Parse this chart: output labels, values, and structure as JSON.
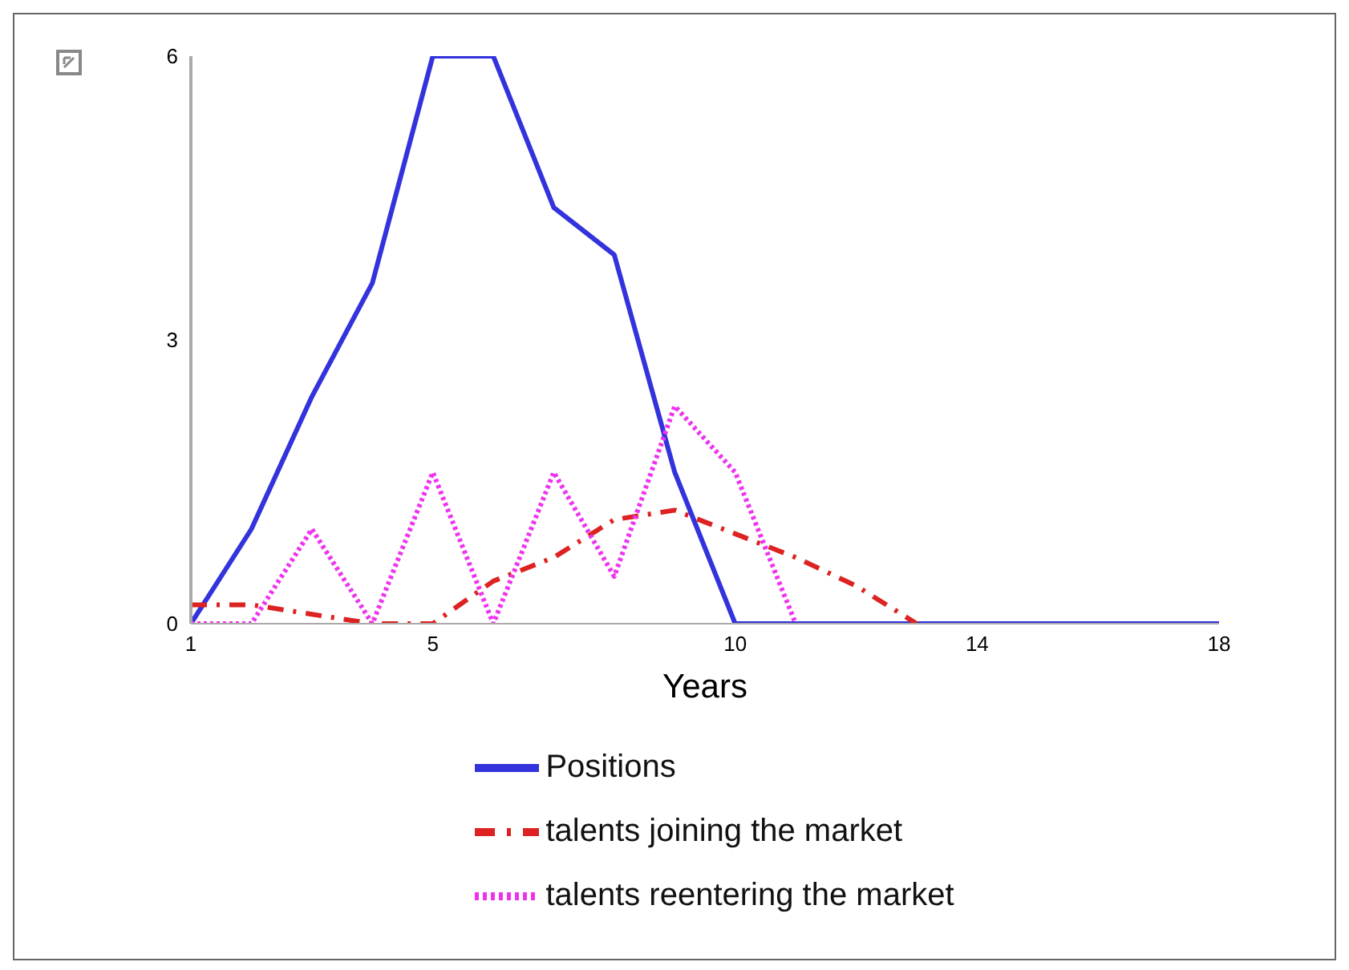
{
  "chart_data": {
    "type": "line",
    "xlabel": "Years",
    "x": [
      1,
      2,
      3,
      4,
      5,
      6,
      7,
      8,
      9,
      10,
      11,
      12,
      13,
      14,
      15,
      16,
      17,
      18
    ],
    "xlim": [
      1,
      18
    ],
    "xticks": [
      1,
      5,
      10,
      14,
      18
    ],
    "ylim": [
      0,
      6
    ],
    "yticks": [
      0,
      3,
      6
    ],
    "grid": false,
    "legend": "bottom",
    "marker": "none",
    "series": [
      {
        "name": "Positions",
        "color": "#3333dd",
        "line_style": "solid",
        "values": [
          0,
          1.0,
          2.4,
          3.6,
          6,
          6,
          4.4,
          3.9,
          1.6,
          0,
          0,
          0,
          0,
          0,
          0,
          0,
          0,
          0
        ]
      },
      {
        "name": "talents joining the market",
        "color": "#dd2222",
        "line_style": "dashed",
        "values": [
          0.2,
          0.2,
          0.1,
          0,
          0,
          0.45,
          0.7,
          1.1,
          1.2,
          0.95,
          0.7,
          0.4,
          0,
          null,
          null,
          null,
          null,
          null
        ]
      },
      {
        "name": "talents reentering the market",
        "color": "#ee33ee",
        "line_style": "dotted",
        "values": [
          0,
          0,
          1.0,
          0,
          1.6,
          0,
          1.6,
          0.5,
          2.3,
          1.6,
          0,
          null,
          null,
          null,
          null,
          null,
          null,
          null
        ]
      }
    ]
  }
}
